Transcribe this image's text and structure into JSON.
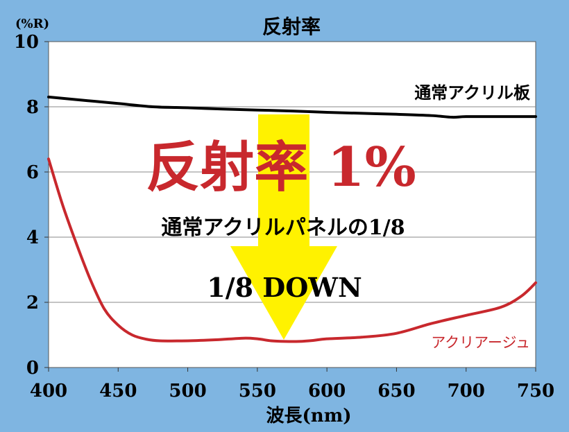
{
  "chart_data": {
    "type": "line",
    "title": "反射率",
    "xlabel": "波長(nm)",
    "ylabel": "(%R)",
    "xlim": [
      400,
      750
    ],
    "ylim": [
      0,
      10
    ],
    "x_ticks": [
      "400",
      "450",
      "500",
      "550",
      "600",
      "650",
      "700",
      "750"
    ],
    "y_ticks": [
      "0",
      "2",
      "4",
      "6",
      "8",
      "10"
    ],
    "grid": true,
    "series": [
      {
        "name": "通常アクリル板",
        "color": "#000000",
        "x": [
          400,
          425,
          450,
          475,
          500,
          525,
          550,
          575,
          600,
          625,
          650,
          675,
          690,
          700,
          725,
          750
        ],
        "y": [
          8.3,
          8.2,
          8.1,
          8.0,
          7.97,
          7.93,
          7.9,
          7.87,
          7.83,
          7.8,
          7.77,
          7.73,
          7.68,
          7.7,
          7.7,
          7.7
        ]
      },
      {
        "name": "アクリアージュ",
        "color": "#c8282d",
        "x": [
          400,
          410,
          420,
          430,
          440,
          450,
          460,
          470,
          480,
          500,
          520,
          540,
          550,
          560,
          570,
          580,
          590,
          600,
          625,
          650,
          675,
          700,
          725,
          740,
          750
        ],
        "y": [
          6.4,
          5.0,
          3.8,
          2.7,
          1.8,
          1.3,
          1.0,
          0.87,
          0.82,
          0.82,
          0.85,
          0.9,
          0.88,
          0.82,
          0.8,
          0.8,
          0.83,
          0.88,
          0.93,
          1.05,
          1.35,
          1.6,
          1.85,
          2.2,
          2.6
        ]
      }
    ],
    "annotations": {
      "big_label": "反射率 1%",
      "sub_label": "通常アクリルパネルの1/8",
      "down_label": "1/8 DOWN"
    }
  },
  "colors": {
    "frame": "#7fb5e1",
    "plot_bg": "#ffffff",
    "grid": "#8a8a8a",
    "accent_red": "#c8282d",
    "arrow_yellow": "#fff200"
  }
}
